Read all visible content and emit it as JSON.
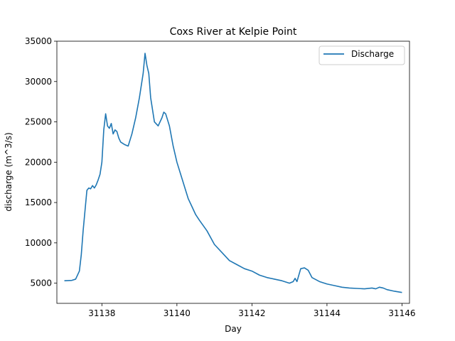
{
  "chart_data": {
    "type": "line",
    "title": "Coxs River at Kelpie Point",
    "xlabel": "Day",
    "ylabel": "discharge (m^3/s)",
    "xlim": [
      31136.8,
      31146.2
    ],
    "ylim": [
      2500,
      35000
    ],
    "xticks": [
      31138,
      31140,
      31142,
      31144,
      31146
    ],
    "yticks": [
      5000,
      10000,
      15000,
      20000,
      25000,
      30000,
      35000
    ],
    "legend": "top-right",
    "grid": false,
    "series": [
      {
        "name": "Discharge",
        "color": "#1f77b4",
        "x": [
          31137.0,
          31137.2,
          31137.3,
          31137.4,
          31137.45,
          31137.5,
          31137.55,
          31137.6,
          31137.65,
          31137.7,
          31137.75,
          31137.8,
          31137.85,
          31137.9,
          31137.95,
          31138.0,
          31138.05,
          31138.1,
          31138.15,
          31138.2,
          31138.25,
          31138.3,
          31138.35,
          31138.4,
          31138.45,
          31138.5,
          31138.6,
          31138.7,
          31138.8,
          31138.9,
          31139.0,
          31139.1,
          31139.15,
          31139.2,
          31139.25,
          31139.3,
          31139.4,
          31139.5,
          31139.6,
          31139.65,
          31139.7,
          31139.8,
          31139.9,
          31140.0,
          31140.1,
          31140.2,
          31140.3,
          31140.4,
          31140.5,
          31140.6,
          31140.8,
          31141.0,
          31141.2,
          31141.4,
          31141.6,
          31141.8,
          31142.0,
          31142.2,
          31142.4,
          31142.6,
          31142.8,
          31143.0,
          31143.1,
          31143.15,
          31143.2,
          31143.3,
          31143.4,
          31143.5,
          31143.6,
          31143.8,
          31144.0,
          31144.2,
          31144.4,
          31144.6,
          31144.8,
          31145.0,
          31145.2,
          31145.3,
          31145.4,
          31145.5,
          31145.6,
          31145.8,
          31146.0
        ],
        "values": [
          5300,
          5350,
          5500,
          6500,
          8500,
          11500,
          14000,
          16500,
          16800,
          16700,
          17100,
          16800,
          17200,
          17800,
          18500,
          20000,
          24000,
          26000,
          24500,
          24200,
          24800,
          23500,
          24000,
          23800,
          23000,
          22500,
          22200,
          22000,
          23500,
          25500,
          28000,
          31000,
          33500,
          32000,
          31000,
          28000,
          25000,
          24500,
          25500,
          26200,
          26000,
          24500,
          22000,
          20000,
          18500,
          17000,
          15500,
          14500,
          13500,
          12800,
          11500,
          9800,
          8800,
          7800,
          7300,
          6800,
          6500,
          6000,
          5700,
          5500,
          5300,
          5000,
          5200,
          5600,
          5200,
          6800,
          6900,
          6600,
          5700,
          5200,
          4900,
          4700,
          4500,
          4400,
          4350,
          4300,
          4400,
          4300,
          4500,
          4400,
          4200,
          4000,
          3850
        ]
      }
    ]
  }
}
